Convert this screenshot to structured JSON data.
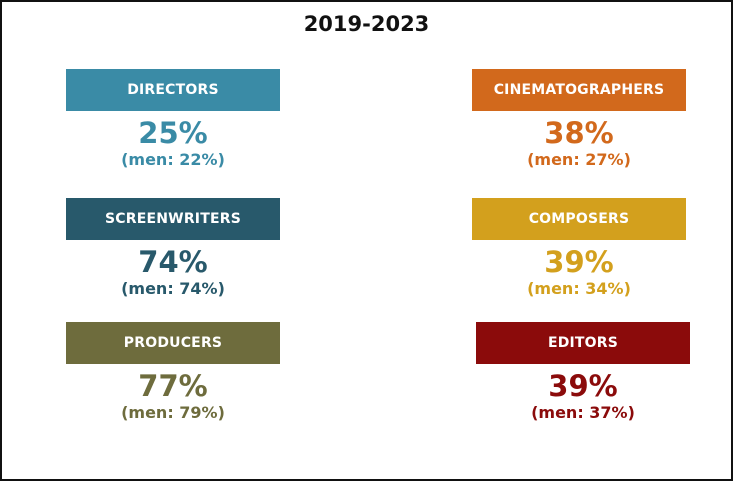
{
  "chart_data": {
    "type": "table",
    "title": "2019-2023",
    "categories": [
      {
        "label": "DIRECTORS",
        "value": "25%",
        "men": "(men: 22%)",
        "color": "#3a8ba6"
      },
      {
        "label": "CINEMATOGRAPHERS",
        "value": "38%",
        "men": "(men: 27%)",
        "color": "#d2691c"
      },
      {
        "label": "SCREENWRITERS",
        "value": "74%",
        "men": "(men: 74%)",
        "color": "#28596b"
      },
      {
        "label": "COMPOSERS",
        "value": "39%",
        "men": "(men: 34%)",
        "color": "#d3a01d"
      },
      {
        "label": "PRODUCERS",
        "value": "77%",
        "men": "(men: 79%)",
        "color": "#6e6c3d"
      },
      {
        "label": "EDITORS",
        "value": "39%",
        "men": "(men: 37%)",
        "color": "#8b0b0b"
      }
    ]
  }
}
